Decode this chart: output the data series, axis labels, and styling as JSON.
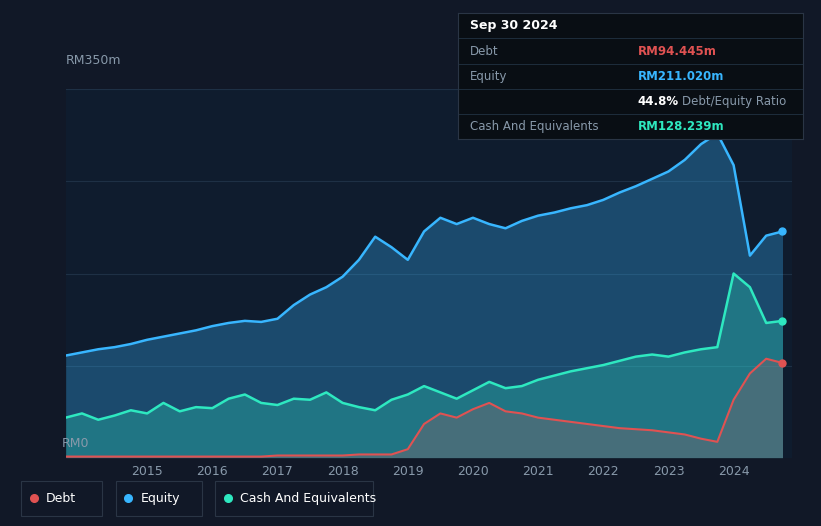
{
  "bg_color": "#111827",
  "chart_bg": "#0f1c2e",
  "tooltip_date": "Sep 30 2024",
  "debt_label": "Debt",
  "equity_label": "Equity",
  "cash_label": "Cash And Equivalents",
  "debt_value": "RM94.445m",
  "equity_value": "RM211.020m",
  "ratio_value": "44.8%",
  "ratio_label": "Debt/Equity Ratio",
  "cash_value": "RM128.239m",
  "debt_color": "#e05252",
  "equity_color": "#38b6ff",
  "cash_color": "#2ee8c0",
  "ylabel_top": "RM350m",
  "ylabel_bottom": "RM0",
  "x_ticks": [
    2015,
    2016,
    2017,
    2018,
    2019,
    2020,
    2021,
    2022,
    2023,
    2024
  ],
  "years": [
    2013.75,
    2014.0,
    2014.25,
    2014.5,
    2014.75,
    2015.0,
    2015.25,
    2015.5,
    2015.75,
    2016.0,
    2016.25,
    2016.5,
    2016.75,
    2017.0,
    2017.25,
    2017.5,
    2017.75,
    2018.0,
    2018.25,
    2018.5,
    2018.75,
    2019.0,
    2019.25,
    2019.5,
    2019.75,
    2020.0,
    2020.25,
    2020.5,
    2020.75,
    2021.0,
    2021.25,
    2021.5,
    2021.75,
    2022.0,
    2022.25,
    2022.5,
    2022.75,
    2023.0,
    2023.25,
    2023.5,
    2023.75,
    2024.0,
    2024.25,
    2024.5,
    2024.75
  ],
  "equity": [
    97,
    100,
    103,
    105,
    108,
    112,
    115,
    118,
    121,
    125,
    128,
    130,
    129,
    132,
    145,
    155,
    162,
    172,
    188,
    210,
    200,
    188,
    215,
    228,
    222,
    228,
    222,
    218,
    225,
    230,
    233,
    237,
    240,
    245,
    252,
    258,
    265,
    272,
    283,
    298,
    308,
    278,
    192,
    211,
    215
  ],
  "cash": [
    38,
    42,
    36,
    40,
    45,
    42,
    52,
    44,
    48,
    47,
    56,
    60,
    52,
    50,
    56,
    55,
    62,
    52,
    48,
    45,
    55,
    60,
    68,
    62,
    56,
    64,
    72,
    66,
    68,
    74,
    78,
    82,
    85,
    88,
    92,
    96,
    98,
    96,
    100,
    103,
    105,
    175,
    162,
    128,
    130
  ],
  "debt": [
    1,
    1,
    1,
    1,
    1,
    1,
    1,
    1,
    1,
    1,
    1,
    1,
    1,
    2,
    2,
    2,
    2,
    2,
    3,
    3,
    3,
    8,
    32,
    42,
    38,
    46,
    52,
    44,
    42,
    38,
    36,
    34,
    32,
    30,
    28,
    27,
    26,
    24,
    22,
    18,
    15,
    55,
    80,
    94,
    90
  ],
  "ylim": [
    0,
    350
  ],
  "figsize": [
    8.21,
    5.26
  ],
  "dpi": 100
}
